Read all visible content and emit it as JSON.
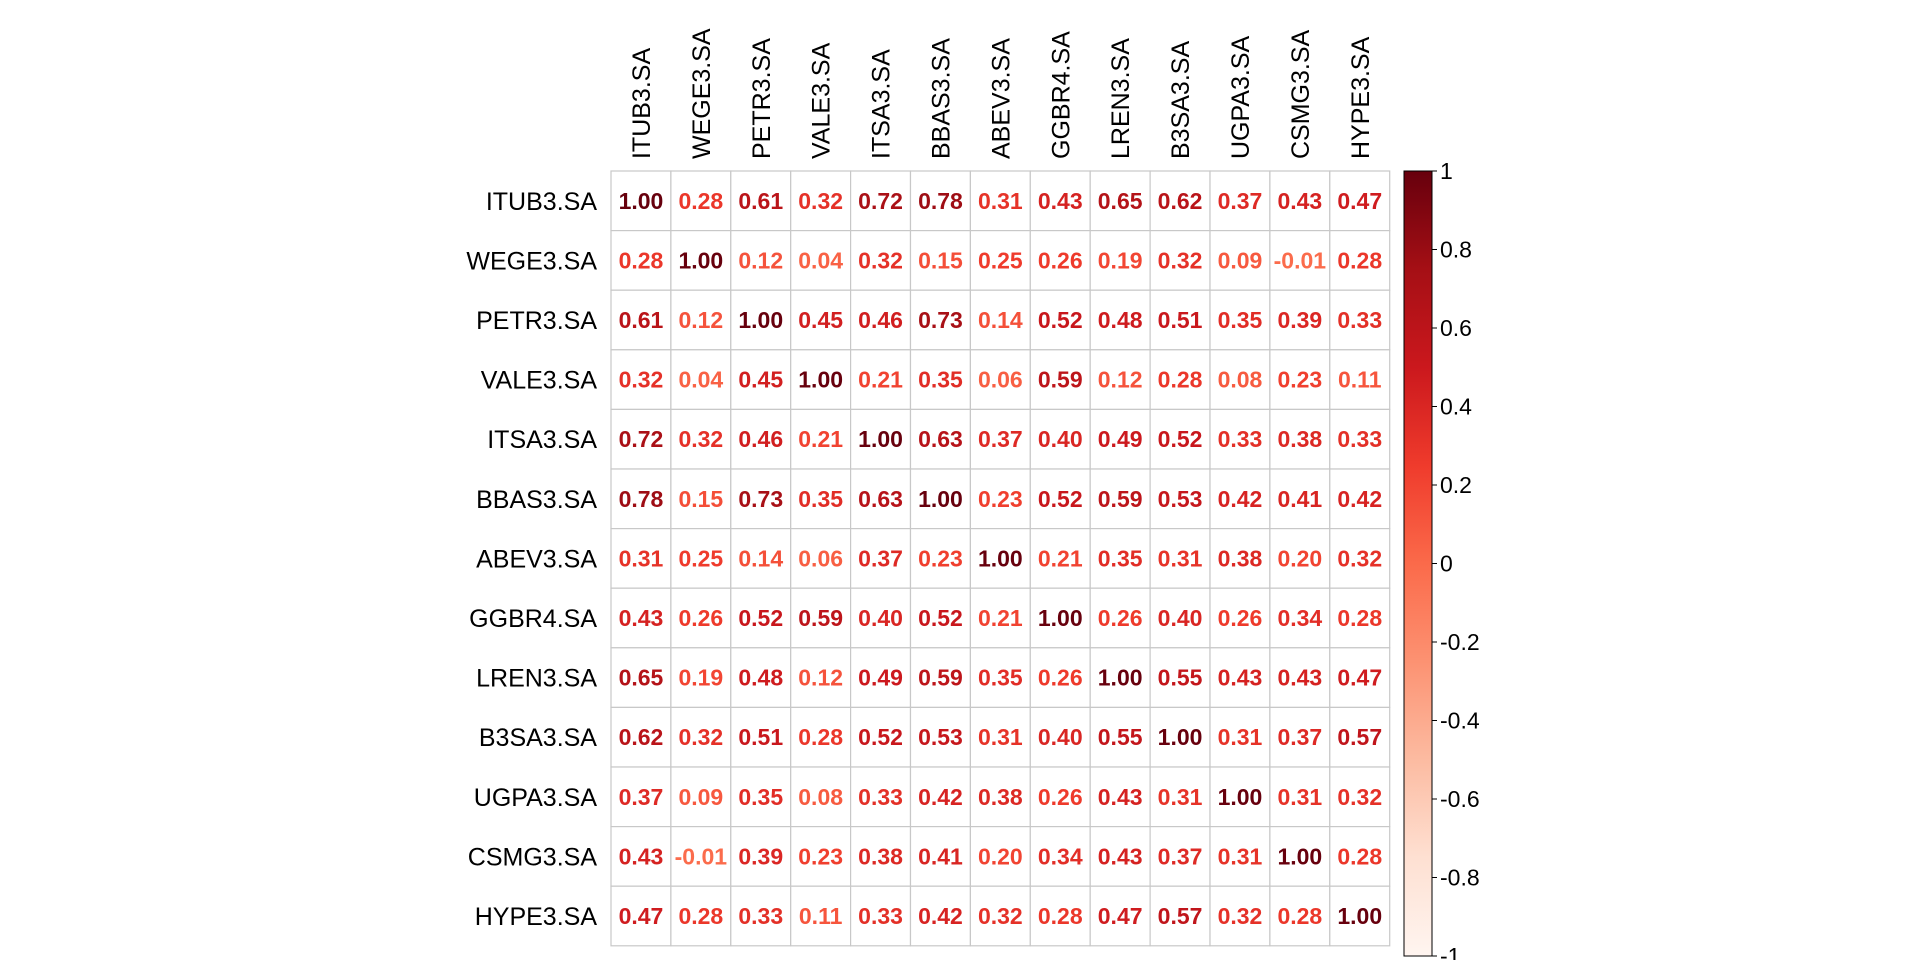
{
  "chart_data": {
    "type": "heatmap",
    "title": "",
    "xlabel": "",
    "ylabel": "",
    "row_labels": [
      "ITUB3.SA",
      "WEGE3.SA",
      "PETR3.SA",
      "VALE3.SA",
      "ITSA3.SA",
      "BBAS3.SA",
      "ABEV3.SA",
      "GGBR4.SA",
      "LREN3.SA",
      "B3SA3.SA",
      "UGPA3.SA",
      "CSMG3.SA",
      "HYPE3.SA"
    ],
    "col_labels": [
      "ITUB3.SA",
      "WEGE3.SA",
      "PETR3.SA",
      "VALE3.SA",
      "ITSA3.SA",
      "BBAS3.SA",
      "ABEV3.SA",
      "GGBR4.SA",
      "LREN3.SA",
      "B3SA3.SA",
      "UGPA3.SA",
      "CSMG3.SA",
      "HYPE3.SA"
    ],
    "values": [
      [
        1.0,
        0.28,
        0.61,
        0.32,
        0.72,
        0.78,
        0.31,
        0.43,
        0.65,
        0.62,
        0.37,
        0.43,
        0.47
      ],
      [
        0.28,
        1.0,
        0.12,
        0.04,
        0.32,
        0.15,
        0.25,
        0.26,
        0.19,
        0.32,
        0.09,
        -0.01,
        0.28
      ],
      [
        0.61,
        0.12,
        1.0,
        0.45,
        0.46,
        0.73,
        0.14,
        0.52,
        0.48,
        0.51,
        0.35,
        0.39,
        0.33
      ],
      [
        0.32,
        0.04,
        0.45,
        1.0,
        0.21,
        0.35,
        0.06,
        0.59,
        0.12,
        0.28,
        0.08,
        0.23,
        0.11
      ],
      [
        0.72,
        0.32,
        0.46,
        0.21,
        1.0,
        0.63,
        0.37,
        0.4,
        0.49,
        0.52,
        0.33,
        0.38,
        0.33
      ],
      [
        0.78,
        0.15,
        0.73,
        0.35,
        0.63,
        1.0,
        0.23,
        0.52,
        0.59,
        0.53,
        0.42,
        0.41,
        0.42
      ],
      [
        0.31,
        0.25,
        0.14,
        0.06,
        0.37,
        0.23,
        1.0,
        0.21,
        0.35,
        0.31,
        0.38,
        0.2,
        0.32
      ],
      [
        0.43,
        0.26,
        0.52,
        0.59,
        0.4,
        0.52,
        0.21,
        1.0,
        0.26,
        0.4,
        0.26,
        0.34,
        0.28
      ],
      [
        0.65,
        0.19,
        0.48,
        0.12,
        0.49,
        0.59,
        0.35,
        0.26,
        1.0,
        0.55,
        0.43,
        0.43,
        0.47
      ],
      [
        0.62,
        0.32,
        0.51,
        0.28,
        0.52,
        0.53,
        0.31,
        0.4,
        0.55,
        1.0,
        0.31,
        0.37,
        0.57
      ],
      [
        0.37,
        0.09,
        0.35,
        0.08,
        0.33,
        0.42,
        0.38,
        0.26,
        0.43,
        0.31,
        1.0,
        0.31,
        0.32
      ],
      [
        0.43,
        -0.01,
        0.39,
        0.23,
        0.38,
        0.41,
        0.2,
        0.34,
        0.43,
        0.37,
        0.31,
        1.0,
        0.28
      ],
      [
        0.47,
        0.28,
        0.33,
        0.11,
        0.33,
        0.42,
        0.32,
        0.28,
        0.47,
        0.57,
        0.32,
        0.28,
        1.0
      ]
    ],
    "colorbar": {
      "range": [
        -1,
        1
      ],
      "ticks": [
        "1",
        "0.8",
        "0.6",
        "0.4",
        "0.2",
        "0",
        "-0.2",
        "-0.4",
        "-0.6",
        "-0.8",
        "-1"
      ],
      "tick_values": [
        1,
        0.8,
        0.6,
        0.4,
        0.2,
        0,
        -0.2,
        -0.4,
        -0.6,
        -0.8,
        -1
      ],
      "colors": [
        "#fff5f0",
        "#fee0d2",
        "#fcbba1",
        "#fc9272",
        "#fb6a4a",
        "#ef3b2c",
        "#cb181d",
        "#a50f15",
        "#67000d"
      ]
    },
    "grid": true,
    "legend_position": "right"
  }
}
